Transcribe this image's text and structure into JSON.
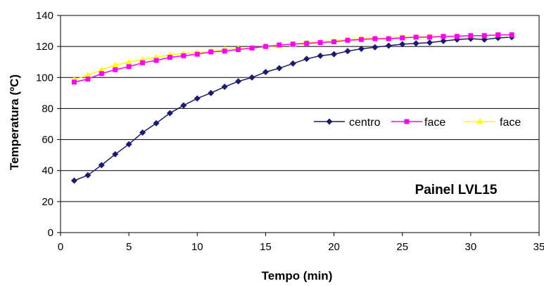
{
  "chart_data": {
    "type": "line",
    "xlabel": "Tempo (min)",
    "ylabel": "Temperatura (ºC)",
    "xlim": [
      0,
      35
    ],
    "ylim": [
      0,
      140
    ],
    "xticks": [
      0,
      5,
      10,
      15,
      20,
      25,
      30,
      35
    ],
    "yticks": [
      0,
      20,
      40,
      60,
      80,
      100,
      120,
      140
    ],
    "grid": "horizontal",
    "legend_position": "right",
    "annotation": "Painel LVL15",
    "x": [
      1,
      2,
      3,
      4,
      5,
      6,
      7,
      8,
      9,
      10,
      11,
      12,
      13,
      14,
      15,
      16,
      17,
      18,
      19,
      20,
      21,
      22,
      23,
      24,
      25,
      26,
      27,
      28,
      29,
      30,
      31,
      32,
      33
    ],
    "series": [
      {
        "name": "centro",
        "color": "#1a1a6e",
        "marker": "diamond",
        "values": [
          33.5,
          37,
          43.5,
          50.5,
          57,
          64.5,
          70.5,
          77,
          82,
          86.5,
          90,
          94,
          97.5,
          100,
          103.5,
          106,
          109,
          112,
          114,
          115,
          117,
          118.5,
          119.5,
          120.5,
          121.5,
          122,
          122.5,
          123.5,
          124.5,
          125,
          124.5,
          125.5,
          126
        ]
      },
      {
        "name": "face",
        "color": "#ff00ff",
        "marker": "square",
        "values": [
          97,
          99,
          102.5,
          105,
          107,
          109.5,
          111,
          113,
          114,
          115,
          116.5,
          117,
          118,
          119,
          120,
          121,
          121.5,
          122,
          122.5,
          123,
          124,
          124.5,
          125,
          125,
          125.5,
          126,
          126,
          126.5,
          126.5,
          127,
          127,
          127.5,
          127.5
        ]
      },
      {
        "name": "face",
        "color": "#ffff00",
        "marker": "triangle",
        "values": [
          98.5,
          101.5,
          105,
          108,
          110,
          111.5,
          113,
          114.5,
          115.5,
          116,
          117,
          118,
          118.5,
          119,
          120,
          120.5,
          121.5,
          122.5,
          123,
          123.5,
          124.5,
          125,
          125.5,
          125.5,
          126,
          126,
          126.5,
          126.5,
          127,
          127,
          127,
          127.5,
          127.5
        ]
      }
    ]
  }
}
